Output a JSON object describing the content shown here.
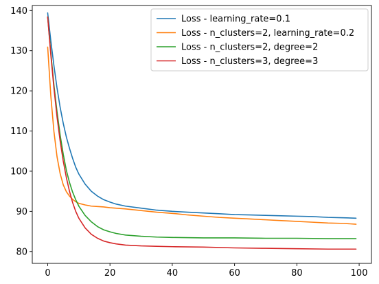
{
  "chart_data": {
    "type": "line",
    "title": "",
    "xlabel": "",
    "ylabel": "",
    "xlim": [
      -4.95,
      103.95
    ],
    "ylim": [
      77.05,
      141.25
    ],
    "xticks": [
      0,
      20,
      40,
      60,
      80,
      100
    ],
    "yticks": [
      80,
      90,
      100,
      110,
      120,
      130,
      140
    ],
    "grid": false,
    "legend": "upper right",
    "series": [
      {
        "name": "Loss - learning_rate=0.1",
        "color": "#1f77b4",
        "points": [
          [
            0,
            139.4
          ],
          [
            1,
            132.5
          ],
          [
            2,
            126.3
          ],
          [
            3,
            120.7
          ],
          [
            4,
            115.9
          ],
          [
            5,
            111.9
          ],
          [
            6,
            108.5
          ],
          [
            7,
            105.7
          ],
          [
            8,
            103.2
          ],
          [
            9,
            101.0
          ],
          [
            10,
            99.3
          ],
          [
            12,
            96.8
          ],
          [
            14,
            95.0
          ],
          [
            16,
            93.8
          ],
          [
            18,
            92.9
          ],
          [
            20,
            92.3
          ],
          [
            22,
            91.8
          ],
          [
            25,
            91.3
          ],
          [
            30,
            90.8
          ],
          [
            35,
            90.3
          ],
          [
            40,
            90.0
          ],
          [
            45,
            89.8
          ],
          [
            50,
            89.6
          ],
          [
            55,
            89.4
          ],
          [
            60,
            89.2
          ],
          [
            65,
            89.1
          ],
          [
            70,
            89.0
          ],
          [
            75,
            88.9
          ],
          [
            80,
            88.8
          ],
          [
            85,
            88.7
          ],
          [
            90,
            88.5
          ],
          [
            95,
            88.4
          ],
          [
            99,
            88.3
          ]
        ]
      },
      {
        "name": "Loss - n_clusters=2, learning_rate=0.2",
        "color": "#ff7f0e",
        "points": [
          [
            0,
            130.9
          ],
          [
            1,
            118.8
          ],
          [
            2,
            109.9
          ],
          [
            3,
            103.6
          ],
          [
            4,
            99.4
          ],
          [
            5,
            96.6
          ],
          [
            6,
            94.9
          ],
          [
            7,
            93.8
          ],
          [
            8,
            93.0
          ],
          [
            9,
            92.4
          ],
          [
            10,
            92.0
          ],
          [
            12,
            91.6
          ],
          [
            14,
            91.3
          ],
          [
            16,
            91.2
          ],
          [
            18,
            91.1
          ],
          [
            20,
            90.9
          ],
          [
            25,
            90.6
          ],
          [
            30,
            90.2
          ],
          [
            35,
            89.8
          ],
          [
            40,
            89.5
          ],
          [
            45,
            89.1
          ],
          [
            50,
            88.8
          ],
          [
            55,
            88.5
          ],
          [
            60,
            88.3
          ],
          [
            65,
            88.1
          ],
          [
            70,
            87.9
          ],
          [
            75,
            87.7
          ],
          [
            80,
            87.5
          ],
          [
            85,
            87.3
          ],
          [
            90,
            87.1
          ],
          [
            95,
            87.0
          ],
          [
            99,
            86.8
          ]
        ]
      },
      {
        "name": "Loss - n_clusters=2, degree=2",
        "color": "#2ca02c",
        "points": [
          [
            0,
            138.4
          ],
          [
            1,
            129.5
          ],
          [
            2,
            121.5
          ],
          [
            3,
            114.8
          ],
          [
            4,
            109.0
          ],
          [
            5,
            104.2
          ],
          [
            6,
            100.2
          ],
          [
            7,
            97.2
          ],
          [
            8,
            94.8
          ],
          [
            9,
            92.9
          ],
          [
            10,
            91.3
          ],
          [
            12,
            89.0
          ],
          [
            14,
            87.4
          ],
          [
            16,
            86.2
          ],
          [
            18,
            85.4
          ],
          [
            20,
            84.9
          ],
          [
            22,
            84.5
          ],
          [
            25,
            84.1
          ],
          [
            30,
            83.8
          ],
          [
            35,
            83.6
          ],
          [
            40,
            83.5
          ],
          [
            50,
            83.4
          ],
          [
            60,
            83.4
          ],
          [
            70,
            83.3
          ],
          [
            80,
            83.3
          ],
          [
            90,
            83.2
          ],
          [
            99,
            83.2
          ]
        ]
      },
      {
        "name": "Loss - n_clusters=3, degree=3",
        "color": "#d62728",
        "points": [
          [
            0,
            138.4
          ],
          [
            1,
            129.0
          ],
          [
            2,
            120.7
          ],
          [
            3,
            113.5
          ],
          [
            4,
            107.5
          ],
          [
            5,
            102.5
          ],
          [
            6,
            98.4
          ],
          [
            7,
            95.0
          ],
          [
            8,
            92.2
          ],
          [
            9,
            90.0
          ],
          [
            10,
            88.3
          ],
          [
            12,
            85.9
          ],
          [
            14,
            84.3
          ],
          [
            16,
            83.3
          ],
          [
            18,
            82.6
          ],
          [
            20,
            82.2
          ],
          [
            22,
            81.9
          ],
          [
            25,
            81.6
          ],
          [
            30,
            81.4
          ],
          [
            35,
            81.3
          ],
          [
            40,
            81.2
          ],
          [
            50,
            81.1
          ],
          [
            60,
            80.9
          ],
          [
            70,
            80.8
          ],
          [
            80,
            80.7
          ],
          [
            90,
            80.6
          ],
          [
            99,
            80.6
          ]
        ]
      }
    ]
  }
}
